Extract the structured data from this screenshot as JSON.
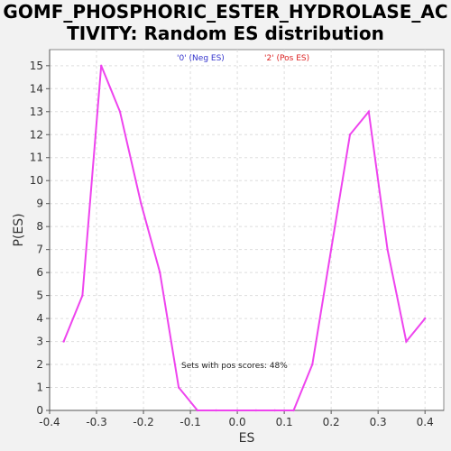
{
  "chart_data": {
    "type": "line",
    "title_line1": "GOMF_PHOSPHORIC_ESTER_HYDROLASE_AC",
    "title_line2": "TIVITY: Random ES distribution",
    "xlabel": "ES",
    "ylabel": "P(ES)",
    "xlim": [
      -0.4,
      0.44
    ],
    "ylim": [
      0,
      15.7
    ],
    "x_ticks": [
      -0.4,
      -0.3,
      -0.2,
      -0.1,
      0.0,
      0.1,
      0.2,
      0.3,
      0.4
    ],
    "x_tick_labels": [
      "-0.4",
      "-0.3",
      "-0.2",
      "-0.1",
      "0.0",
      "0.1",
      "0.2",
      "0.3",
      "0.4"
    ],
    "y_ticks": [
      0,
      1,
      2,
      3,
      4,
      5,
      6,
      7,
      8,
      9,
      10,
      11,
      12,
      13,
      14,
      15
    ],
    "grid": true,
    "legend": [
      {
        "label": "'0' (Neg ES)",
        "color": "#3333cc"
      },
      {
        "label": "'2' (Pos ES)",
        "color": "#dd2222"
      }
    ],
    "annotation": "Sets with pos scores: 48%",
    "series": [
      {
        "color": "#ee44ee",
        "x": [
          -0.37,
          -0.33,
          -0.29,
          -0.25,
          -0.205,
          -0.165,
          -0.125,
          -0.085,
          -0.045,
          0.0,
          0.04,
          0.08,
          0.12,
          0.16,
          0.2,
          0.24,
          0.28,
          0.32,
          0.36,
          0.4
        ],
        "y": [
          3,
          5,
          15,
          13,
          9,
          6,
          1,
          0,
          0,
          0,
          0,
          0,
          0,
          2,
          7,
          12,
          13,
          7,
          3,
          4
        ]
      }
    ]
  }
}
